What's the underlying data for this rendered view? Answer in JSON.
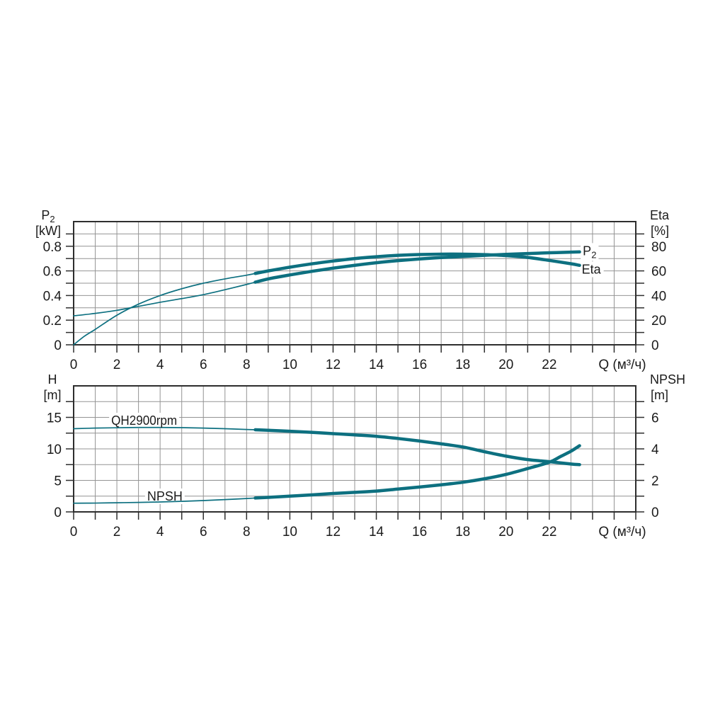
{
  "style": {
    "curve_color": "#0d7080",
    "grid_color": "#949494",
    "frame_color": "#2e2e2e",
    "text_color": "#1b1b1b",
    "background": "#ffffff"
  },
  "chart_data": [
    {
      "id": "power-efficiency-chart",
      "type": "line",
      "x_axis": {
        "label": "Q (м³/ч)",
        "min": 0,
        "max": 26,
        "grid_step": 1,
        "tick_from": 0,
        "tick_to": 26,
        "tick_step": 1,
        "labels": [
          [
            "0",
            0
          ],
          [
            "2",
            2
          ],
          [
            "4",
            4
          ],
          [
            "6",
            6
          ],
          [
            "8",
            8
          ],
          [
            "10",
            10
          ],
          [
            "12",
            12
          ],
          [
            "14",
            14
          ],
          [
            "16",
            16
          ],
          [
            "18",
            18
          ],
          [
            "20",
            20
          ],
          [
            "22",
            22
          ]
        ]
      },
      "left_axis": {
        "title_main": "P",
        "title_sub": "2",
        "unit": "[kW]",
        "min": 0,
        "max": 1,
        "grid_step": 0.1,
        "tick_from": 0,
        "tick_to": 0.9,
        "tick_step": 0.1,
        "labels": [
          [
            "0",
            0
          ],
          [
            "0.2",
            0.2
          ],
          [
            "0.4",
            0.4
          ],
          [
            "0.6",
            0.6
          ],
          [
            "0.8",
            0.8
          ]
        ]
      },
      "right_axis": {
        "title_main": "Eta",
        "title_sub": "",
        "unit": "[%]",
        "min": 0,
        "max": 100,
        "grid_step": 10,
        "tick_from": 0,
        "tick_to": 90,
        "tick_step": 10,
        "labels": [
          [
            "0",
            0
          ],
          [
            "20",
            20
          ],
          [
            "40",
            40
          ],
          [
            "60",
            60
          ],
          [
            "80",
            80
          ]
        ]
      },
      "series": [
        {
          "name": "P2",
          "axis": "left",
          "thick_from": 8.4,
          "end_label": {
            "main": "P",
            "sub": "2",
            "q": 23.55,
            "v_left": 0.728
          },
          "points": [
            [
              0,
              0.235
            ],
            [
              1,
              0.255
            ],
            [
              2,
              0.28
            ],
            [
              3,
              0.312
            ],
            [
              4,
              0.345
            ],
            [
              5,
              0.375
            ],
            [
              6,
              0.407
            ],
            [
              7,
              0.447
            ],
            [
              8,
              0.49
            ],
            [
              8.4,
              0.508
            ],
            [
              9,
              0.535
            ],
            [
              10,
              0.567
            ],
            [
              11,
              0.596
            ],
            [
              12,
              0.622
            ],
            [
              13,
              0.645
            ],
            [
              14,
              0.666
            ],
            [
              15,
              0.683
            ],
            [
              16,
              0.697
            ],
            [
              17,
              0.708
            ],
            [
              18,
              0.717
            ],
            [
              19,
              0.726
            ],
            [
              20,
              0.734
            ],
            [
              21,
              0.741
            ],
            [
              22,
              0.747
            ],
            [
              23,
              0.752
            ],
            [
              23.4,
              0.754
            ]
          ]
        },
        {
          "name": "Eta",
          "axis": "right",
          "thick_from": 8.4,
          "end_label": {
            "main": "Eta",
            "sub": "",
            "q": 23.5,
            "v_left": 0.578
          },
          "points": [
            [
              0,
              0
            ],
            [
              0.5,
              7
            ],
            [
              1,
              12.5
            ],
            [
              2,
              24
            ],
            [
              3,
              33
            ],
            [
              4,
              40
            ],
            [
              5,
              45.5
            ],
            [
              6,
              50
            ],
            [
              7,
              53.5
            ],
            [
              8,
              56.5
            ],
            [
              8.4,
              57.9
            ],
            [
              9,
              60
            ],
            [
              10,
              63
            ],
            [
              11,
              65.7
            ],
            [
              12,
              68
            ],
            [
              13,
              70
            ],
            [
              14,
              71.5
            ],
            [
              15,
              72.6
            ],
            [
              16,
              73.3
            ],
            [
              17,
              73.6
            ],
            [
              18,
              73.6
            ],
            [
              19,
              73.2
            ],
            [
              20,
              72.4
            ],
            [
              21,
              70.9
            ],
            [
              22,
              68.5
            ],
            [
              23,
              65.8
            ],
            [
              23.4,
              64.5
            ]
          ]
        }
      ]
    },
    {
      "id": "head-npsh-chart",
      "type": "line",
      "x_axis": {
        "label": "Q (м³/ч)",
        "min": 0,
        "max": 26,
        "grid_step": 1,
        "tick_from": 0,
        "tick_to": 26,
        "tick_step": 1,
        "labels": [
          [
            "0",
            0
          ],
          [
            "2",
            2
          ],
          [
            "4",
            4
          ],
          [
            "6",
            6
          ],
          [
            "8",
            8
          ],
          [
            "10",
            10
          ],
          [
            "12",
            12
          ],
          [
            "14",
            14
          ],
          [
            "16",
            16
          ],
          [
            "18",
            18
          ],
          [
            "20",
            20
          ],
          [
            "22",
            22
          ]
        ]
      },
      "left_axis": {
        "title_main": "H",
        "title_sub": "",
        "unit": "[m]",
        "min": 0,
        "max": 20,
        "grid_step": 2.5,
        "tick_from": 0,
        "tick_to": 17.5,
        "tick_step": 2.5,
        "labels": [
          [
            "0",
            0
          ],
          [
            "5",
            5
          ],
          [
            "10",
            10
          ],
          [
            "15",
            15
          ]
        ]
      },
      "right_axis": {
        "title_main": "NPSH",
        "title_sub": "",
        "unit": "[m]",
        "min": 0,
        "max": 8,
        "grid_step": 1,
        "tick_from": 0,
        "tick_to": 7,
        "tick_step": 1,
        "labels": [
          [
            "0",
            0
          ],
          [
            "2",
            2
          ],
          [
            "4",
            4
          ],
          [
            "6",
            6
          ]
        ]
      },
      "series": [
        {
          "name": "QH",
          "axis": "left",
          "thick_from": 8.4,
          "inline_label": {
            "text": "QH2900rpm",
            "q": 1.74,
            "v_left": 13.82
          },
          "points": [
            [
              0,
              13.2
            ],
            [
              1,
              13.3
            ],
            [
              2,
              13.35
            ],
            [
              3,
              13.4
            ],
            [
              4,
              13.4
            ],
            [
              5,
              13.37
            ],
            [
              6,
              13.3
            ],
            [
              7,
              13.2
            ],
            [
              8,
              13.08
            ],
            [
              8.4,
              13.03
            ],
            [
              9,
              12.95
            ],
            [
              10,
              12.8
            ],
            [
              11,
              12.62
            ],
            [
              12,
              12.42
            ],
            [
              13,
              12.22
            ],
            [
              14,
              12.0
            ],
            [
              15,
              11.65
            ],
            [
              16,
              11.25
            ],
            [
              17,
              10.8
            ],
            [
              18,
              10.3
            ],
            [
              19,
              9.55
            ],
            [
              20,
              8.85
            ],
            [
              21,
              8.3
            ],
            [
              22,
              7.97
            ],
            [
              23,
              7.6
            ],
            [
              23.4,
              7.5
            ]
          ]
        },
        {
          "name": "NPSH",
          "axis": "right",
          "thick_from": 8.4,
          "inline_label": {
            "text": "NPSH",
            "q": 3.4,
            "v_left": 1.8
          },
          "points": [
            [
              0,
              0.55
            ],
            [
              1,
              0.56
            ],
            [
              2,
              0.58
            ],
            [
              3,
              0.6
            ],
            [
              4,
              0.63
            ],
            [
              5,
              0.67
            ],
            [
              6,
              0.72
            ],
            [
              7,
              0.78
            ],
            [
              8,
              0.85
            ],
            [
              8.4,
              0.88
            ],
            [
              9,
              0.92
            ],
            [
              10,
              1.0
            ],
            [
              11,
              1.08
            ],
            [
              12,
              1.17
            ],
            [
              13,
              1.24
            ],
            [
              14,
              1.32
            ],
            [
              15,
              1.45
            ],
            [
              16,
              1.58
            ],
            [
              17,
              1.72
            ],
            [
              18,
              1.88
            ],
            [
              19,
              2.1
            ],
            [
              20,
              2.38
            ],
            [
              21,
              2.75
            ],
            [
              22,
              3.15
            ],
            [
              22.5,
              3.5
            ],
            [
              23,
              3.85
            ],
            [
              23.4,
              4.2
            ]
          ]
        }
      ]
    }
  ]
}
